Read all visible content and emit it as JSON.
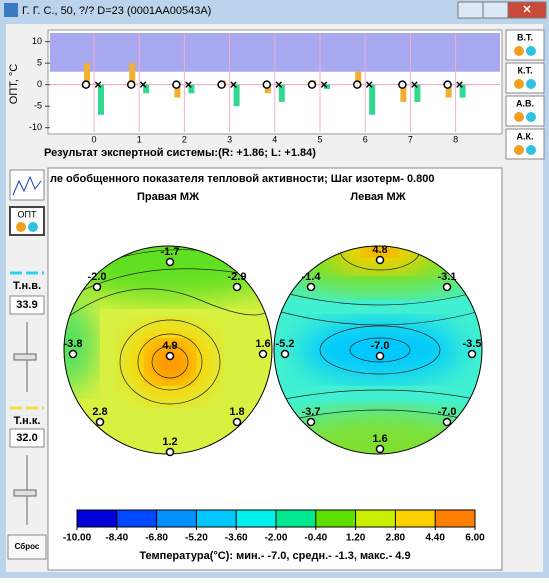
{
  "window": {
    "title": "Г. Г. С., 50, ?/? D=23 (0001AA00543A)"
  },
  "top_chart": {
    "type": "bar",
    "ylabel": "ОПТ, °С",
    "ylim": [
      -11,
      12
    ],
    "yticks": [
      10,
      5,
      0,
      -5,
      -10
    ],
    "categories": [
      "0",
      "1",
      "2",
      "3",
      "4",
      "5",
      "6",
      "7",
      "8"
    ],
    "series": [
      {
        "name": "R",
        "color": "#f0b030",
        "values": [
          5,
          5,
          -3,
          1,
          -2,
          1,
          3,
          -4,
          -3
        ]
      },
      {
        "name": "L",
        "color": "#30d890",
        "values": [
          -7,
          -2,
          -2,
          -5,
          -4,
          -1,
          -7,
          -4,
          -3
        ]
      }
    ],
    "caption": "Результат экспертной системы:(R: +1.86; L: +1.84)"
  },
  "side_buttons": [
    "В.Т.",
    "К.Т.",
    "А.В.",
    "А.К."
  ],
  "left_panel": {
    "button": "ОПТ",
    "upper_label": "Т.н.в.",
    "upper_value": "33.9",
    "lower_label": "Т.н.к.",
    "lower_value": "32.0",
    "reset": "Сброс"
  },
  "thermogram": {
    "title": "ле обобщенного показателя тепловой активности;    Шаг изотерм- 0.800",
    "right": {
      "label": "Правая МЖ",
      "points": [
        "-1.7",
        "-2.0",
        "-2.9",
        "-3.8",
        "4.9",
        "1.6",
        "2.8",
        "1.8",
        "1.2"
      ]
    },
    "left": {
      "label": "Левая МЖ",
      "points": [
        "4.8",
        "-1.4",
        "-3.1",
        "-5.2",
        "-7.0",
        "-3.5",
        "-3.7",
        "-7.0",
        "1.6"
      ]
    },
    "colorbar": {
      "colors": [
        "#0000d8",
        "#0048ff",
        "#0090ff",
        "#00c8ff",
        "#00f0f0",
        "#00e890",
        "#60e000",
        "#c8f000",
        "#ffd000",
        "#ff8000"
      ],
      "ticks": [
        {
          "value": -10,
          "label": "-10.00"
        },
        {
          "value": -8.4,
          "label": "-8.40"
        },
        {
          "value": -6.8,
          "label": "-6.80"
        },
        {
          "value": -5.2,
          "label": "-5.20"
        },
        {
          "value": -3.6,
          "label": "-3.60"
        },
        {
          "value": -2,
          "label": "-2.00"
        },
        {
          "value": -0.4,
          "label": "-0.40"
        },
        {
          "value": 1.2,
          "label": "1.20"
        },
        {
          "value": 2.8,
          "label": "2.80"
        },
        {
          "value": 4.4,
          "label": "4.40"
        },
        {
          "value": 6,
          "label": "6.00"
        }
      ]
    },
    "footer": "Температура(°С): мин.-   -7.0,  средн.-   -1.3,  макс.-   4.9"
  }
}
